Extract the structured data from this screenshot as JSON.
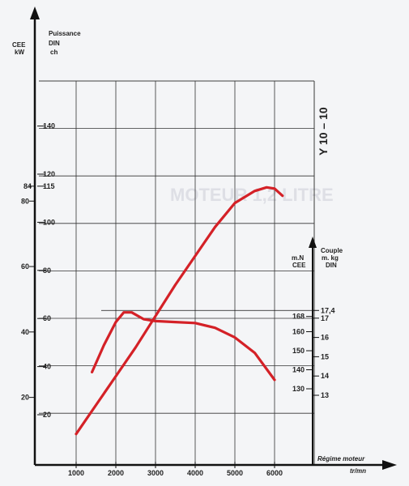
{
  "chart_data": {
    "type": "line",
    "label": "Y 10 – 10",
    "xlabel": "Régime moteur",
    "xunit": "tr/mn",
    "x_ticks": [
      1000,
      2000,
      3000,
      4000,
      5000,
      6000
    ],
    "xlim": [
      500,
      7000
    ],
    "power_axis": {
      "label_cee": "CEE",
      "unit_kw": "kW",
      "label_din": "Puissance DIN",
      "label_din_line1": "Puissance",
      "label_din_line2": "DIN",
      "unit_ch": "ch",
      "kw_ticks": [
        "20",
        "40",
        "60",
        "80"
      ],
      "kw_ticks_values": [
        20,
        40,
        60,
        80
      ],
      "ch_ticks": [
        "20",
        "40",
        "60",
        "80",
        "100",
        "115",
        "120",
        "140"
      ],
      "ch_ticks_values": [
        20,
        40,
        60,
        80,
        100,
        115,
        120,
        140
      ],
      "max_label_kw": "84",
      "ylim_ch": [
        0,
        160
      ]
    },
    "torque_axis": {
      "label": "Couple",
      "unit_din": "m. kg",
      "din": "DIN",
      "unit_cee": "m.N",
      "cee": "CEE",
      "mN_ticks": [
        "130",
        "140",
        "150",
        "160",
        "168"
      ],
      "mN_values": [
        130,
        140,
        150,
        160,
        168
      ],
      "mkg_ticks": [
        "13",
        "14",
        "15",
        "16",
        "17",
        "17,4"
      ],
      "mkg_values": [
        13,
        14,
        15,
        16,
        17,
        17.4
      ],
      "ylim_mkg": [
        12.5,
        18.5
      ]
    },
    "series": [
      {
        "axis": "power_ch",
        "color": "#d42127",
        "x": [
          1000,
          1500,
          2000,
          2500,
          3000,
          3500,
          4000,
          4500,
          5000,
          5500,
          5800,
          6000,
          6200
        ],
        "y": [
          12,
          24,
          36,
          48,
          61,
          74,
          86,
          98,
          108,
          113,
          114.5,
          114,
          111
        ]
      },
      {
        "axis": "torque_mkg",
        "color": "#d42127",
        "x": [
          1400,
          1700,
          2000,
          2200,
          2400,
          2700,
          3000,
          3500,
          4000,
          4500,
          5000,
          5500,
          6000
        ],
        "y": [
          14.2,
          15.6,
          16.8,
          17.3,
          17.3,
          16.95,
          16.85,
          16.8,
          16.75,
          16.5,
          16.0,
          15.2,
          13.8
        ]
      }
    ]
  }
}
